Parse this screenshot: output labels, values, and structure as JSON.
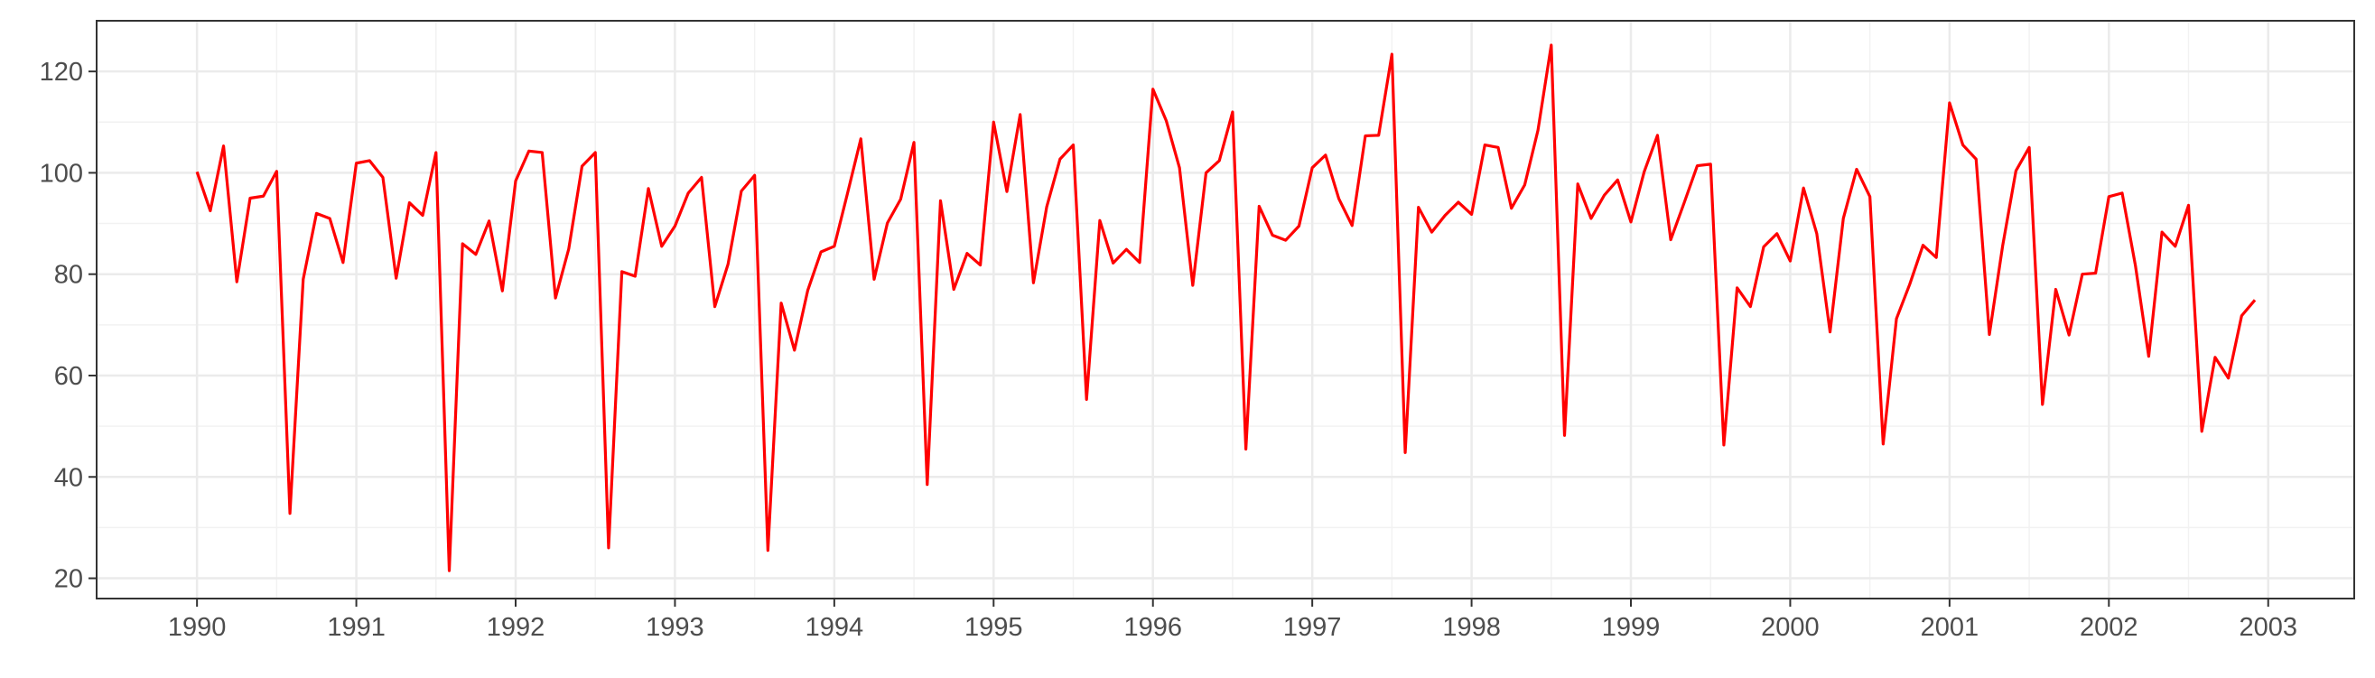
{
  "chart_data": {
    "type": "line",
    "title": "",
    "xlabel": "",
    "ylabel": "",
    "x_start_year": 1990,
    "x_start_month": 1,
    "frequency": "monthly",
    "xlim": [
      1989.37,
      2003.54
    ],
    "ylim": [
      16,
      130
    ],
    "x_ticks": [
      1990,
      1991,
      1992,
      1993,
      1994,
      1995,
      1996,
      1997,
      1998,
      1999,
      2000,
      2001,
      2002,
      2003
    ],
    "x_tick_labels": [
      "1990",
      "1991",
      "1992",
      "1993",
      "1994",
      "1995",
      "1996",
      "1997",
      "1998",
      "1999",
      "2000",
      "2001",
      "2002",
      "2003"
    ],
    "y_ticks": [
      20,
      40,
      60,
      80,
      100,
      120
    ],
    "y_tick_labels": [
      "20",
      "40",
      "60",
      "80",
      "100",
      "120"
    ],
    "grid": true,
    "line_color": "#ff0000",
    "series": [
      {
        "values": [
          100.2,
          92.5,
          105.3,
          78.5,
          95.0,
          95.4,
          100.3,
          32.8,
          79.0,
          92.0,
          91.0,
          82.3,
          101.9,
          102.4,
          99.1,
          79.2,
          94.1,
          91.6,
          104.0,
          21.5,
          86.0,
          83.9,
          90.5,
          76.7,
          98.4,
          104.3,
          104.0,
          75.3,
          85.0,
          101.3,
          104.0,
          26.0,
          80.5,
          79.6,
          96.9,
          85.5,
          89.5,
          96.0,
          99.1,
          73.6,
          82.0,
          96.4,
          99.5,
          25.5,
          74.3,
          65.0,
          76.8,
          84.4,
          85.5,
          96.0,
          106.7,
          79.0,
          90.1,
          94.8,
          106.0,
          38.5,
          94.5,
          77.0,
          84.1,
          81.8,
          110.0,
          96.3,
          111.5,
          78.3,
          93.3,
          102.7,
          105.5,
          55.3,
          90.6,
          82.2,
          84.9,
          82.3,
          116.5,
          110.3,
          101.0,
          77.8,
          100.0,
          102.4,
          112.0,
          45.5,
          93.4,
          87.7,
          86.7,
          89.5,
          101.0,
          103.5,
          94.9,
          89.6,
          107.3,
          107.4,
          123.4,
          44.8,
          93.2,
          88.3,
          91.6,
          94.2,
          91.8,
          105.5,
          105.0,
          93.0,
          97.6,
          108.4,
          125.2,
          48.2,
          97.8,
          91.0,
          95.6,
          98.6,
          90.3,
          100.2,
          107.4,
          86.8,
          94.0,
          101.4,
          101.7,
          46.3,
          77.3,
          73.6,
          85.4,
          88.0,
          82.6,
          97.0,
          88.0,
          68.6,
          91.0,
          100.7,
          95.3,
          46.5,
          71.2,
          78.0,
          85.7,
          83.3,
          113.8,
          105.5,
          102.7,
          68.1,
          85.6,
          100.4,
          105.0,
          54.3,
          77.0,
          68.0,
          80.0,
          80.2,
          95.3,
          96.0,
          81.7,
          63.8,
          88.3,
          85.5,
          93.6,
          49.0,
          63.6,
          59.5,
          71.8,
          74.9
        ]
      }
    ]
  }
}
